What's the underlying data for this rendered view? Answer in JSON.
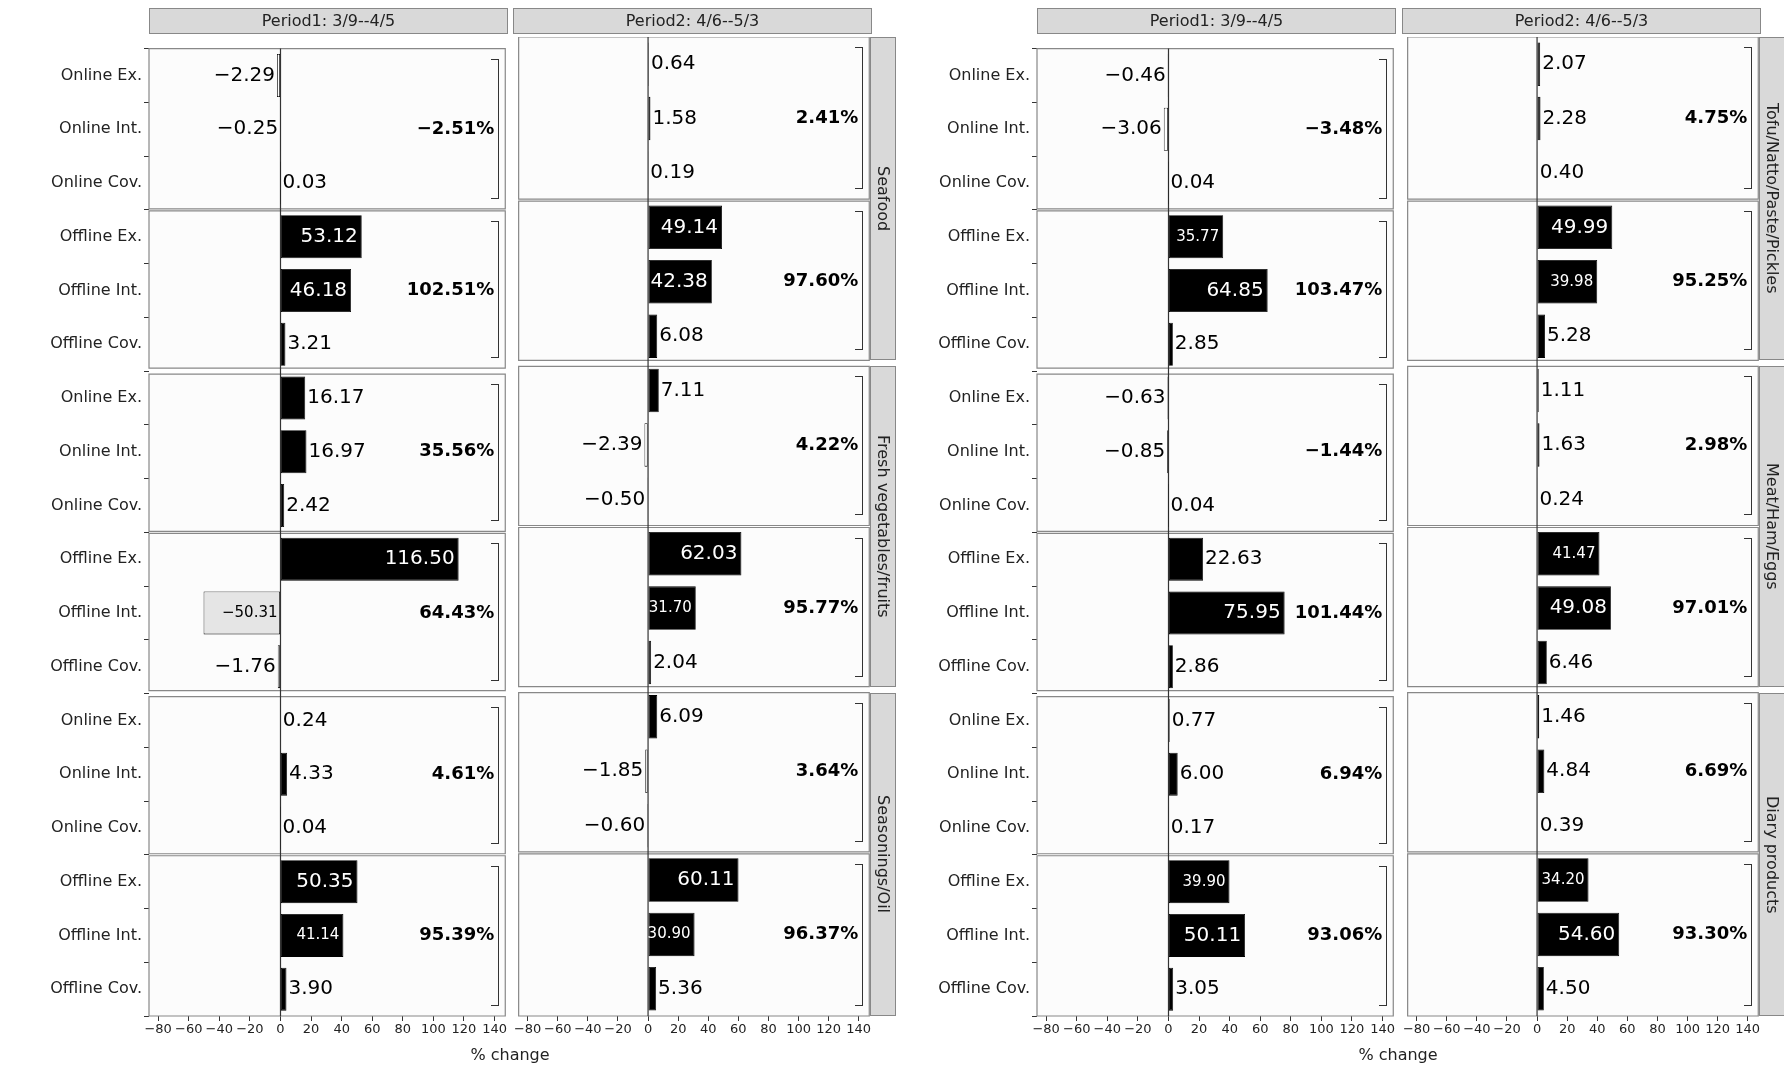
{
  "chart_data": [
    {
      "type": "bar",
      "orientation": "horizontal",
      "title": "Period1: 3/9--4/5",
      "xlabel": "% change",
      "categories": [
        "Online Ex.",
        "Online Int.",
        "Online Cov.",
        "Offline Ex.",
        "Offline Int.",
        "Offline Cov.",
        "Online Ex.",
        "Online Int.",
        "Online Cov.",
        "Offline Ex.",
        "Offline Int.",
        "Offline Cov.",
        "Online Ex.",
        "Online Int.",
        "Online Cov.",
        "Offline Ex.",
        "Offline Int.",
        "Offline Cov."
      ],
      "values": [
        -2.29,
        -0.25,
        0.03,
        53.12,
        46.18,
        3.21,
        16.17,
        16.97,
        2.42,
        116.5,
        -50.31,
        -1.76,
        0.24,
        4.33,
        0.04,
        50.35,
        41.14,
        3.9
      ],
      "value_labels": [
        "−2.29",
        "−0.25",
        "0.03",
        "53.12",
        "46.18",
        "3.21",
        "16.17",
        "16.97",
        "2.42",
        "116.50",
        "−50.31",
        "−1.76",
        "0.24",
        "4.33",
        "0.04",
        "50.35",
        "41.14",
        "3.90"
      ],
      "colors": [
        "#ffffff",
        "#000000",
        "#000000",
        "#000000",
        "#000000",
        "#000000",
        "#000000",
        "#000000",
        "#000000",
        "#000000",
        "#e5e5e5",
        "#ffffff",
        "#000000",
        "#000000",
        "#000000",
        "#000000",
        "#000000",
        "#000000"
      ],
      "xlim": [
        -86,
        147
      ],
      "xticks": [
        {
          "value": -80,
          "label": "−80"
        },
        {
          "value": -60,
          "label": "−60"
        },
        {
          "value": -40,
          "label": "−40"
        },
        {
          "value": -20,
          "label": "−20"
        },
        0,
        20,
        40,
        60,
        80,
        100,
        120,
        140
      ],
      "ref_lines": [
        {
          "axis": "x",
          "value": 0,
          "color": "#333333"
        }
      ],
      "annotations": [
        "−2.51%",
        "102.51%",
        "35.56%",
        "64.43%",
        "4.61%",
        "95.39%"
      ]
    },
    {
      "type": "bar",
      "orientation": "horizontal",
      "title": "Period2: 4/6--5/3",
      "tick_labels": "x",
      "categories": [
        null,
        null,
        null,
        null,
        null,
        null,
        null,
        null,
        null,
        null,
        null,
        null,
        null,
        null,
        null,
        null,
        null,
        null
      ],
      "values": [
        0.64,
        1.58,
        0.19,
        49.14,
        42.38,
        6.08,
        7.11,
        -2.39,
        -0.5,
        62.03,
        31.7,
        2.04,
        6.09,
        -1.85,
        -0.6,
        60.11,
        30.9,
        5.36
      ],
      "value_labels": [
        "0.64",
        "1.58",
        "0.19",
        "49.14",
        "42.38",
        "6.08",
        "7.11",
        "−2.39",
        "−0.50",
        "62.03",
        "31.70",
        "2.04",
        "6.09",
        "−1.85",
        "−0.60",
        "60.11",
        "30.90",
        "5.36"
      ],
      "colors": [
        "#000000",
        "#000000",
        "#000000",
        "#000000",
        "#000000",
        "#000000",
        "#000000",
        "#ffffff",
        "#000000",
        "#000000",
        "#000000",
        "#000000",
        "#000000",
        "#ffffff",
        "#000000",
        "#000000",
        "#000000",
        "#000000"
      ],
      "xlim": [
        -86,
        147
      ],
      "xticks": [
        {
          "value": -80,
          "label": "−80"
        },
        {
          "value": -60,
          "label": "−60"
        },
        {
          "value": -40,
          "label": "−40"
        },
        {
          "value": -20,
          "label": "−20"
        },
        0,
        20,
        40,
        60,
        80,
        100,
        120,
        140
      ],
      "ref_lines": [
        {
          "axis": "x",
          "value": 0,
          "color": "#333333"
        }
      ],
      "annotations": [
        "2.41%",
        "97.60%",
        "4.22%",
        "95.77%",
        "3.64%",
        "96.37%",
        "Seafood",
        "Fresh vegetables/fruits",
        "Seasonings/Oil"
      ]
    },
    {
      "type": "bar",
      "orientation": "horizontal",
      "title": "Period1: 3/9--4/5",
      "xlabel": "% change",
      "categories": [
        "Online Ex.",
        "Online Int.",
        "Online Cov.",
        "Offline Ex.",
        "Offline Int.",
        "Offline Cov.",
        "Online Ex.",
        "Online Int.",
        "Online Cov.",
        "Offline Ex.",
        "Offline Int.",
        "Offline Cov.",
        "Online Ex.",
        "Online Int.",
        "Online Cov.",
        "Offline Ex.",
        "Offline Int.",
        "Offline Cov."
      ],
      "values": [
        -0.46,
        -3.06,
        0.04,
        35.77,
        64.85,
        2.85,
        -0.63,
        -0.85,
        0.04,
        22.63,
        75.95,
        2.86,
        0.77,
        6.0,
        0.17,
        39.9,
        50.11,
        3.05
      ],
      "value_labels": [
        "−0.46",
        "−3.06",
        "0.04",
        "35.77",
        "64.85",
        "2.85",
        "−0.63",
        "−0.85",
        "0.04",
        "22.63",
        "75.95",
        "2.86",
        "0.77",
        "6.00",
        "0.17",
        "39.90",
        "50.11",
        "3.05"
      ],
      "colors": [
        "#000000",
        "#ffffff",
        "#000000",
        "#000000",
        "#000000",
        "#000000",
        "#000000",
        "#000000",
        "#000000",
        "#000000",
        "#000000",
        "#000000",
        "#000000",
        "#000000",
        "#000000",
        "#000000",
        "#000000",
        "#000000"
      ],
      "xlim": [
        -86,
        147
      ],
      "xticks": [
        {
          "value": -80,
          "label": "−80"
        },
        {
          "value": -60,
          "label": "−60"
        },
        {
          "value": -40,
          "label": "−40"
        },
        {
          "value": -20,
          "label": "−20"
        },
        0,
        20,
        40,
        60,
        80,
        100,
        120,
        140
      ],
      "ref_lines": [
        {
          "axis": "x",
          "value": 0,
          "color": "#333333"
        }
      ],
      "annotations": [
        "−3.48%",
        "103.47%",
        "−1.44%",
        "101.44%",
        "6.94%",
        "93.06%"
      ]
    },
    {
      "type": "bar",
      "orientation": "horizontal",
      "title": "Period2: 4/6--5/3",
      "tick_labels": "x",
      "categories": [
        null,
        null,
        null,
        null,
        null,
        null,
        null,
        null,
        null,
        null,
        null,
        null,
        null,
        null,
        null,
        null,
        null,
        null
      ],
      "values": [
        2.07,
        2.28,
        0.4,
        49.99,
        39.98,
        5.28,
        1.11,
        1.63,
        0.24,
        41.47,
        49.08,
        6.46,
        1.46,
        4.84,
        0.39,
        34.2,
        54.6,
        4.5
      ],
      "value_labels": [
        "2.07",
        "2.28",
        "0.40",
        "49.99",
        "39.98",
        "5.28",
        "1.11",
        "1.63",
        "0.24",
        "41.47",
        "49.08",
        "6.46",
        "1.46",
        "4.84",
        "0.39",
        "34.20",
        "54.60",
        "4.50"
      ],
      "colors": [
        "#000000",
        "#000000",
        "#000000",
        "#000000",
        "#000000",
        "#000000",
        "#000000",
        "#000000",
        "#000000",
        "#000000",
        "#000000",
        "#000000",
        "#000000",
        "#000000",
        "#000000",
        "#000000",
        "#000000",
        "#000000"
      ],
      "xlim": [
        -86,
        147
      ],
      "xticks": [
        {
          "value": -80,
          "label": "−80"
        },
        {
          "value": -60,
          "label": "−60"
        },
        {
          "value": -40,
          "label": "−40"
        },
        {
          "value": -20,
          "label": "−20"
        },
        0,
        20,
        40,
        60,
        80,
        100,
        120,
        140
      ],
      "ref_lines": [
        {
          "axis": "x",
          "value": 0,
          "color": "#333333"
        }
      ],
      "annotations": [
        "4.75%",
        "95.25%",
        "2.98%",
        "97.01%",
        "6.69%",
        "93.30%",
        "Tofu/Natto/Paste/Pickles",
        "Meat/Ham/Eggs",
        "Diary products"
      ]
    }
  ]
}
